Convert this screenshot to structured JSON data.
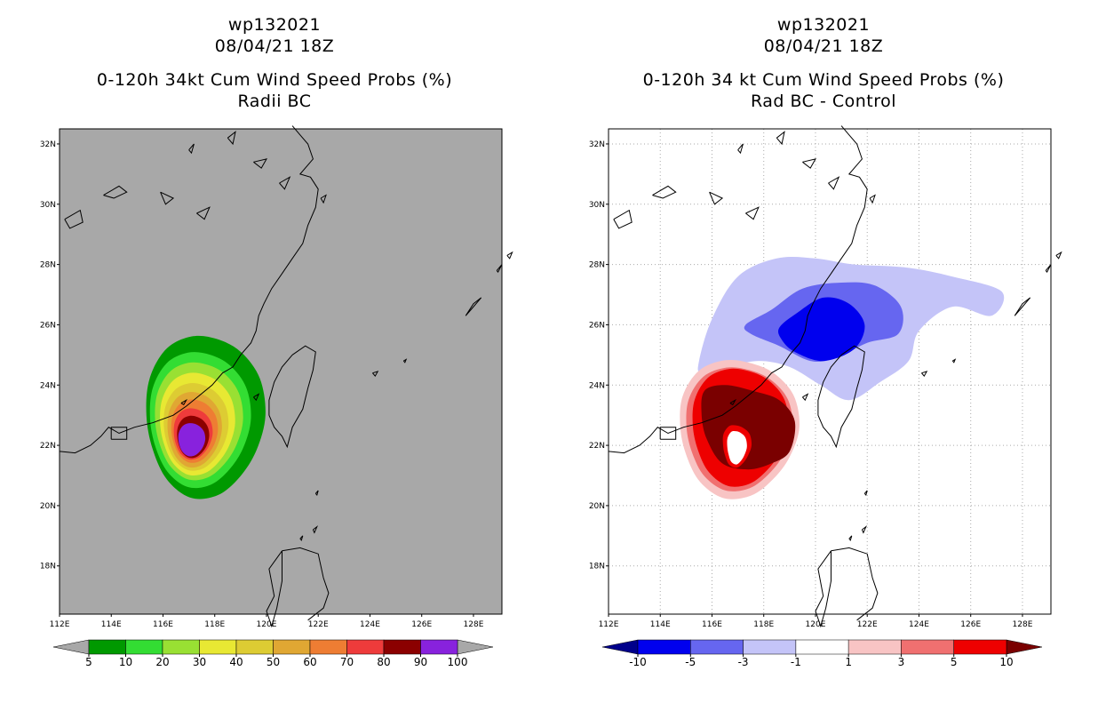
{
  "panels": [
    {
      "id": "left",
      "title_line1": "wp132021",
      "title_line2": "08/04/21 18Z",
      "title_line3": "0-120h 34kt Cum Wind Speed Probs (%)",
      "title_line4": "Radii BC",
      "background_color": "#a8a8a8",
      "grid": false,
      "colorbar": {
        "labels": [
          "5",
          "10",
          "20",
          "30",
          "40",
          "50",
          "60",
          "70",
          "80",
          "90",
          "100"
        ],
        "colors": [
          "#009900",
          "#33dd33",
          "#99e033",
          "#e8e833",
          "#ddcc33",
          "#e0a733",
          "#ee7d33",
          "#ee3b3b",
          "#8b0000",
          "#8822dd"
        ],
        "end_colors": [
          "#a8a8a8",
          "#a8a8a8"
        ]
      }
    },
    {
      "id": "right",
      "title_line1": "wp132021",
      "title_line2": "08/04/21 18Z",
      "title_line3": "0-120h 34 kt Cum Wind Speed Probs (%)",
      "title_line4": "Rad BC - Control",
      "background_color": "#ffffff",
      "grid": true,
      "colorbar": {
        "labels": [
          "-10",
          "-5",
          "-3",
          "-1",
          "1",
          "3",
          "5",
          "10"
        ],
        "colors": [
          "#0000ee",
          "#6666f0",
          "#c4c4f8",
          "#ffffff",
          "#f8c4c4",
          "#f07070",
          "#ee0000"
        ],
        "end_colors": [
          "#00008b",
          "#7a0000"
        ]
      }
    }
  ],
  "map": {
    "lon_labels": [
      "112E",
      "114E",
      "116E",
      "118E",
      "120E",
      "122E",
      "124E",
      "126E",
      "128E"
    ],
    "lat_labels": [
      "32N",
      "30N",
      "28N",
      "26N",
      "24N",
      "22N",
      "20N",
      "18N"
    ]
  }
}
